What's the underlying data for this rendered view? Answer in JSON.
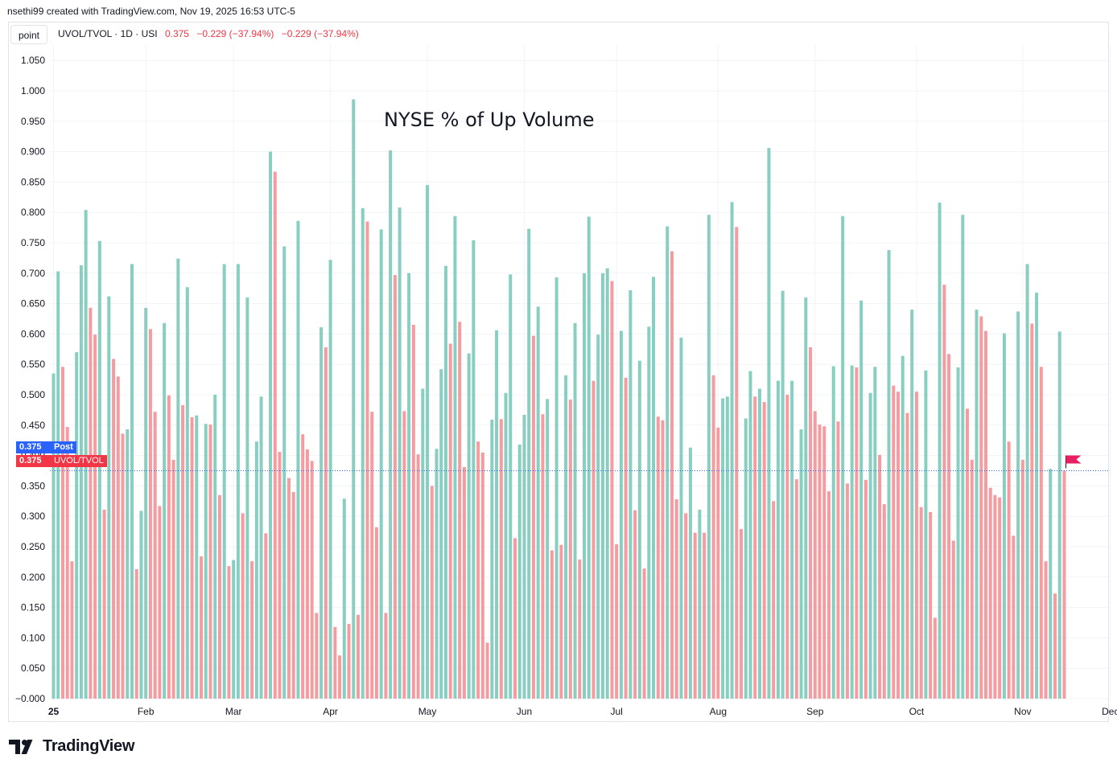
{
  "credit": "nsethi99 created with TradingView.com, Nov 19, 2025 16:53 UTC-5",
  "toolbar": {
    "point_label": "point"
  },
  "legend": {
    "symbol": "UVOL/TVOL · 1D · USI",
    "value": "0.375",
    "change1": "−0.229 (−37.94%)",
    "change2": "−0.229 (−37.94%)"
  },
  "price_tags": {
    "post_value": "0.375",
    "post_label": "Post",
    "last_value": "0.375",
    "last_label": "UVOL/TVOL"
  },
  "brand": {
    "name": "TradingView"
  },
  "colors": {
    "up": "#89cfc1",
    "down": "#f59ca0",
    "accent_blue": "#2962ff",
    "accent_red": "#f23645",
    "flag": "#e91e63"
  },
  "chart_data": {
    "type": "bar",
    "title": "NYSE % of Up Volume",
    "ylim": [
      -0.005,
      1.05
    ],
    "yticks": [
      "1.050",
      "1.000",
      "0.950",
      "0.900",
      "0.850",
      "0.800",
      "0.750",
      "0.700",
      "0.650",
      "0.600",
      "0.550",
      "0.500",
      "0.450",
      "0.400",
      "0.350",
      "0.300",
      "0.250",
      "0.200",
      "0.150",
      "0.100",
      "0.050",
      "−0.000"
    ],
    "ytick_values": [
      1.05,
      1.0,
      0.95,
      0.9,
      0.85,
      0.8,
      0.75,
      0.7,
      0.65,
      0.6,
      0.55,
      0.5,
      0.45,
      0.4,
      0.35,
      0.3,
      0.25,
      0.2,
      0.15,
      0.1,
      0.05,
      0.0
    ],
    "xticks": [
      {
        "label": "25",
        "bar": 0,
        "bold": true
      },
      {
        "label": "Feb",
        "bar": 20
      },
      {
        "label": "Mar",
        "bar": 39
      },
      {
        "label": "Apr",
        "bar": 60
      },
      {
        "label": "May",
        "bar": 81
      },
      {
        "label": "Jun",
        "bar": 102
      },
      {
        "label": "Jul",
        "bar": 122
      },
      {
        "label": "Aug",
        "bar": 144
      },
      {
        "label": "Sep",
        "bar": 165
      },
      {
        "label": "Oct",
        "bar": 187
      },
      {
        "label": "Nov",
        "bar": 210
      },
      {
        "label": "Dec",
        "bar": 229
      }
    ],
    "last_value": 0.375,
    "values": [
      0.535,
      0.703,
      0.546,
      0.447,
      0.226,
      0.57,
      0.713,
      0.804,
      0.643,
      0.599,
      0.753,
      0.311,
      0.662,
      0.559,
      0.53,
      0.436,
      0.443,
      0.715,
      0.213,
      0.309,
      0.643,
      0.608,
      0.472,
      0.317,
      0.618,
      0.499,
      0.393,
      0.724,
      0.483,
      0.677,
      0.463,
      0.466,
      0.234,
      0.452,
      0.451,
      0.5,
      0.335,
      0.715,
      0.218,
      0.228,
      0.715,
      0.305,
      0.66,
      0.226,
      0.423,
      0.497,
      0.272,
      0.9,
      0.867,
      0.406,
      0.744,
      0.363,
      0.34,
      0.786,
      0.435,
      0.41,
      0.391,
      0.141,
      0.611,
      0.578,
      0.722,
      0.118,
      0.071,
      0.329,
      0.123,
      0.986,
      0.138,
      0.807,
      0.785,
      0.472,
      0.282,
      0.772,
      0.141,
      0.902,
      0.697,
      0.808,
      0.473,
      0.7,
      0.615,
      0.402,
      0.51,
      0.845,
      0.35,
      0.411,
      0.542,
      0.712,
      0.584,
      0.794,
      0.62,
      0.381,
      0.568,
      0.754,
      0.423,
      0.405,
      0.092,
      0.459,
      0.606,
      0.46,
      0.503,
      0.698,
      0.264,
      0.418,
      0.467,
      0.773,
      0.597,
      0.645,
      0.468,
      0.493,
      0.244,
      0.693,
      0.253,
      0.532,
      0.492,
      0.618,
      0.229,
      0.7,
      0.793,
      0.523,
      0.599,
      0.7,
      0.708,
      0.687,
      0.254,
      0.605,
      0.528,
      0.672,
      0.31,
      0.556,
      0.214,
      0.612,
      0.694,
      0.464,
      0.458,
      0.777,
      0.736,
      0.328,
      0.594,
      0.305,
      0.413,
      0.273,
      0.311,
      0.273,
      0.796,
      0.532,
      0.446,
      0.494,
      0.497,
      0.817,
      0.776,
      0.279,
      0.461,
      0.539,
      0.497,
      0.51,
      0.488,
      0.906,
      0.325,
      0.523,
      0.671,
      0.5,
      0.523,
      0.361,
      0.443,
      0.66,
      0.578,
      0.473,
      0.451,
      0.448,
      0.341,
      0.547,
      0.456,
      0.794,
      0.354,
      0.548,
      0.545,
      0.655,
      0.36,
      0.503,
      0.546,
      0.401,
      0.32,
      0.738,
      0.515,
      0.505,
      0.564,
      0.47,
      0.64,
      0.505,
      0.315,
      0.54,
      0.307,
      0.133,
      0.816,
      0.681,
      0.567,
      0.26,
      0.545,
      0.796,
      0.477,
      0.393,
      0.64,
      0.629,
      0.605,
      0.347,
      0.335,
      0.331,
      0.601,
      0.423,
      0.268,
      0.637,
      0.393,
      0.715,
      0.617,
      0.668,
      0.546,
      0.226,
      0.378,
      0.173,
      0.604,
      0.375
    ]
  }
}
